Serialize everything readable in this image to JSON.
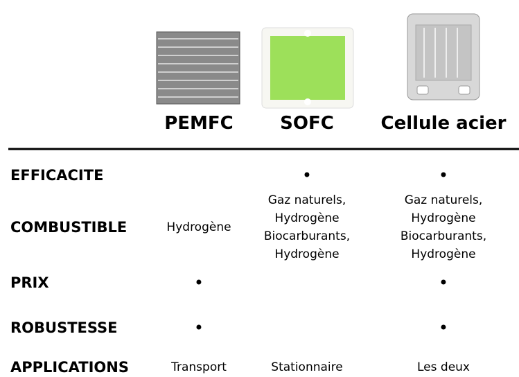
{
  "table": {
    "columns": [
      "PEMFC",
      "SOFC",
      "Cellule acier"
    ],
    "rows": [
      {
        "label": "EFFICACITE",
        "cells": [
          [],
          [
            "•"
          ],
          [
            "•"
          ]
        ]
      },
      {
        "label": "COMBUSTIBLE",
        "cells": [
          [
            "Hydrogène"
          ],
          [
            "Gaz naturels,",
            "Hydrogène",
            "Biocarburants,",
            "Hydrogène"
          ],
          [
            "Gaz naturels,",
            "Hydrogène",
            "Biocarburants,",
            "Hydrogène"
          ]
        ]
      },
      {
        "label": "PRIX",
        "cells": [
          [
            "•"
          ],
          [],
          [
            "•"
          ]
        ]
      },
      {
        "label": "ROBUSTESSE",
        "cells": [
          [
            "•"
          ],
          [],
          [
            "•"
          ]
        ]
      },
      {
        "label": "APPLICATIONS",
        "cells": [
          [
            "Transport"
          ],
          [
            "Stationnaire"
          ],
          [
            "Les deux"
          ]
        ]
      }
    ]
  }
}
